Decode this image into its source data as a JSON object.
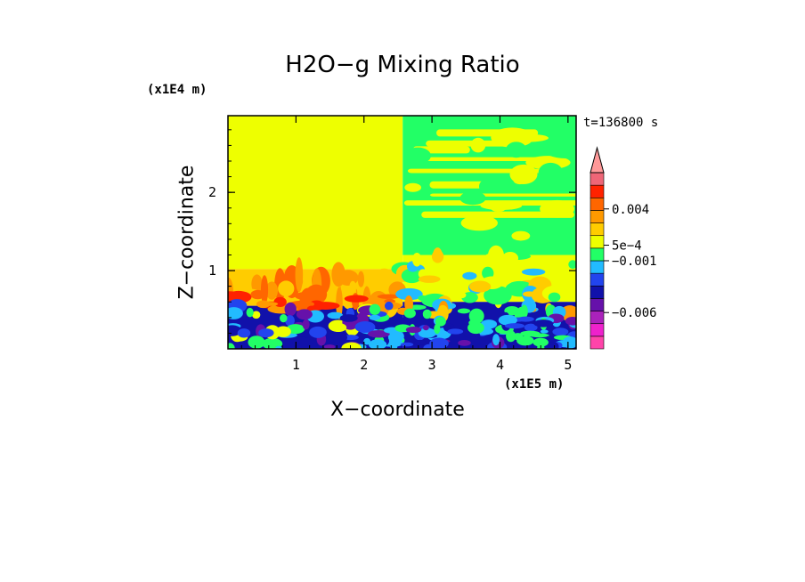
{
  "chart_data": {
    "type": "heatmap",
    "title": "H2O−g Mixing Ratio",
    "xlabel": "X−coordinate",
    "ylabel": "Z−coordinate",
    "x_unit": "(x1E5 m)",
    "y_unit": "(x1E4 m)",
    "time_label": "t=136800 s",
    "xlim": [
      0,
      5.12
    ],
    "ylim": [
      0,
      2.98
    ],
    "x_ticks": [
      1,
      2,
      3,
      4,
      5
    ],
    "y_ticks": [
      1,
      2
    ],
    "colorbar": {
      "colors": [
        "#ff44aa",
        "#ee22cc",
        "#aa22bb",
        "#6611aa",
        "#1111aa",
        "#2244ee",
        "#22bbff",
        "#22ff66",
        "#eeff00",
        "#ffcc00",
        "#ff9900",
        "#ff6600",
        "#ff2200",
        "#ee6677",
        "#ff9999"
      ],
      "tick_labels": [
        "0.004",
        "5e−4",
        "−0.001",
        "−0.006"
      ],
      "tick_values": [
        0.004,
        0.0005,
        -0.001,
        -0.006
      ]
    },
    "regions": [
      {
        "name": "left upper",
        "x": [
          0,
          2.57
        ],
        "z": [
          1.02,
          2.98
        ],
        "color": "#eeff00"
      },
      {
        "name": "left middle",
        "x": [
          0,
          2.57
        ],
        "z": [
          0.55,
          1.02
        ],
        "color": "#ffcc00"
      },
      {
        "name": "left lower",
        "x": [
          0,
          2.57
        ],
        "z": [
          0,
          0.55
        ],
        "color": "#1111aa"
      },
      {
        "name": "right upper",
        "x": [
          2.57,
          5.12
        ],
        "z": [
          1.2,
          2.98
        ],
        "color": "#22ff66"
      },
      {
        "name": "right middle",
        "x": [
          2.57,
          5.12
        ],
        "z": [
          0.6,
          1.2
        ],
        "color": "#eeff00"
      },
      {
        "name": "right lower",
        "x": [
          2.57,
          5.12
        ],
        "z": [
          0,
          0.6
        ],
        "color": "#1111aa"
      }
    ]
  }
}
